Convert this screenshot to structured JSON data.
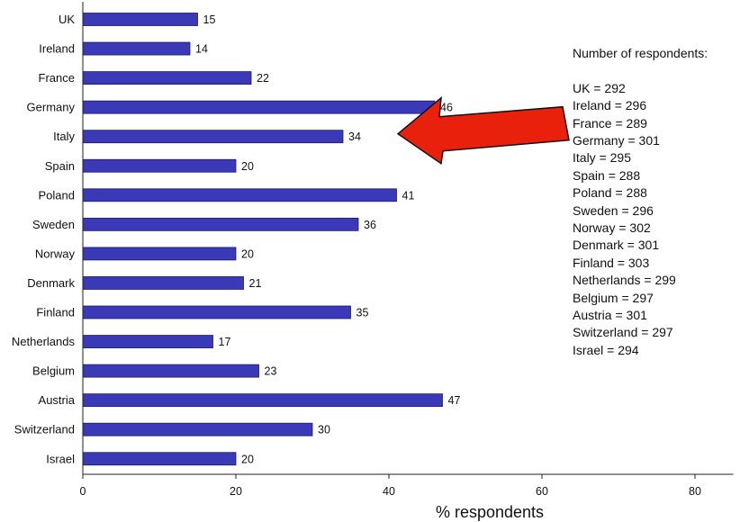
{
  "chart_data": {
    "type": "bar",
    "orientation": "horizontal",
    "categories": [
      "UK",
      "Ireland",
      "France",
      "Germany",
      "Italy",
      "Spain",
      "Poland",
      "Sweden",
      "Norway",
      "Denmark",
      "Finland",
      "Netherlands",
      "Belgium",
      "Austria",
      "Switzerland",
      "Israel"
    ],
    "values": [
      15,
      14,
      22,
      46,
      34,
      20,
      41,
      36,
      20,
      21,
      35,
      17,
      23,
      47,
      30,
      20
    ],
    "xlabel": "% respondents",
    "ylabel": "",
    "xlim": [
      0,
      85
    ],
    "xticks": [
      0,
      20,
      40,
      60,
      80
    ],
    "grid": false,
    "colors": {
      "bar": "#3a3ab8",
      "bar_edge": "#1a1a66",
      "arrow": "#e8200c",
      "arrow_edge": "#111111",
      "axis": "#222222"
    },
    "annotation": {
      "type": "arrow",
      "points_to": "Italy"
    }
  },
  "respondents": {
    "heading": "Number of respondents:",
    "items": [
      "UK = 292",
      "Ireland = 296",
      "France = 289",
      "Germany = 301",
      "Italy = 295",
      "Spain = 288",
      "Poland = 288",
      "Sweden = 296",
      "Norway = 302",
      "Denmark = 301",
      "Finland = 303",
      "Netherlands = 299",
      "Belgium = 297",
      "Austria = 301",
      "Switzerland = 297",
      "Israel = 294"
    ]
  }
}
